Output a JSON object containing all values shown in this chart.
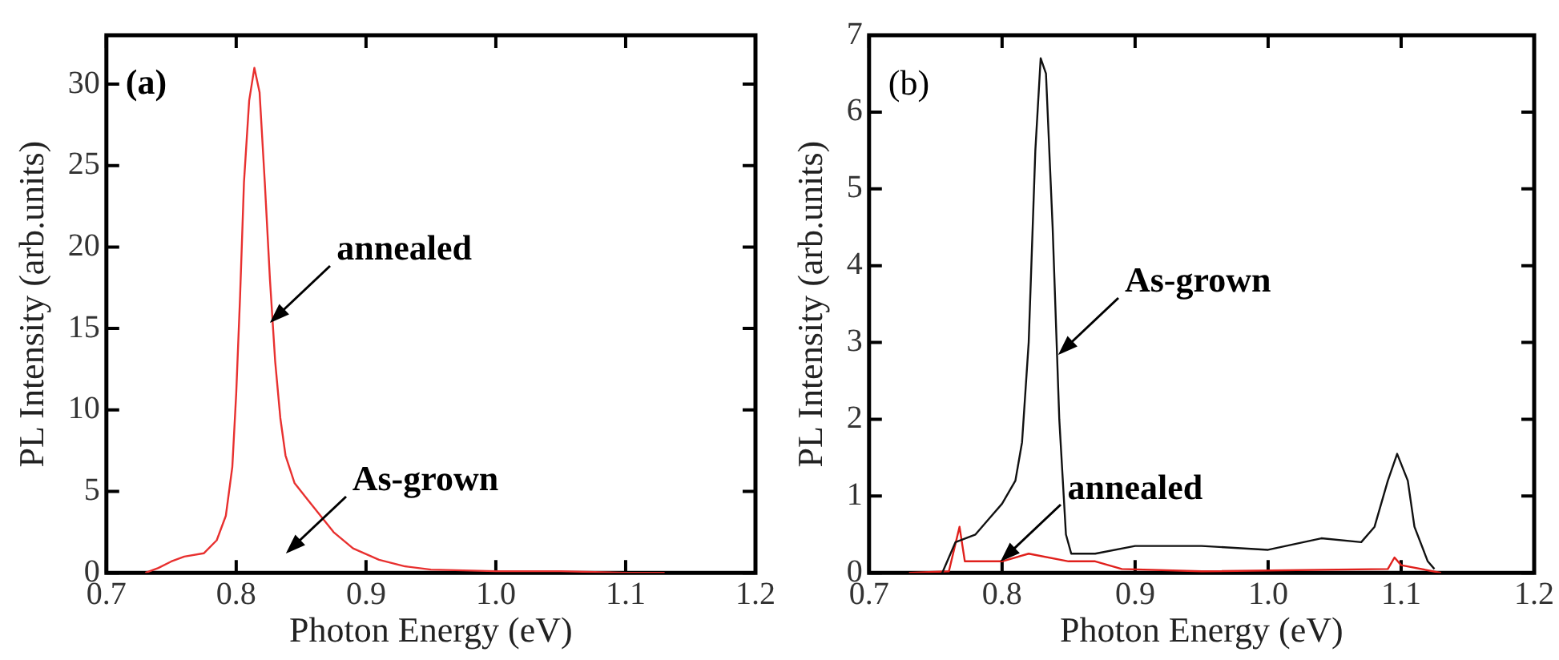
{
  "chart_data": [
    {
      "type": "line",
      "title": "(a)",
      "xlabel": "Photon Energy (eV)",
      "ylabel": "PL Intensity (arb.units)",
      "xlim": [
        0.7,
        1.2
      ],
      "xticks": [
        {
          "value": 0.7,
          "label": "0.7"
        },
        {
          "value": 0.8,
          "label": "0.8"
        },
        {
          "value": 0.9,
          "label": "0.9"
        },
        {
          "value": 1.0,
          "label": "1.0"
        },
        {
          "value": 1.1,
          "label": "1.1"
        },
        {
          "value": 1.2,
          "label": "1.2"
        }
      ],
      "ylim": [
        0,
        33
      ],
      "yticks": [
        0,
        5,
        10,
        15,
        20,
        25,
        30
      ],
      "grid": false,
      "legend": false,
      "marker": "none",
      "series": [
        {
          "color": "#e8302f",
          "x": [
            0.73,
            0.74,
            0.75,
            0.76,
            0.775,
            0.785,
            0.792,
            0.797,
            0.8,
            0.803,
            0.806,
            0.81,
            0.814,
            0.818,
            0.822,
            0.826,
            0.83,
            0.834,
            0.838,
            0.845,
            0.855,
            0.865,
            0.875,
            0.89,
            0.91,
            0.93,
            0.95,
            1.0,
            1.05,
            1.1,
            1.13
          ],
          "values": [
            0,
            0.3,
            0.7,
            1.0,
            1.2,
            2.0,
            3.5,
            6.5,
            11,
            17,
            24,
            29,
            31,
            29.5,
            24,
            18,
            13,
            9.5,
            7.2,
            5.5,
            4.5,
            3.5,
            2.5,
            1.5,
            0.8,
            0.4,
            0.2,
            0.1,
            0.1,
            0,
            0
          ]
        }
      ],
      "annotations": [
        {
          "text": "annealed",
          "x": 0.828,
          "y": 15.5
        },
        "As-grown"
      ]
    },
    {
      "type": "line",
      "title": "(b)",
      "xlabel": "Photon Energy (eV)",
      "ylabel": "PL Intensity (arb.units)",
      "xlim": [
        0.7,
        1.2
      ],
      "xticks": [
        {
          "value": 0.7,
          "label": "0.7"
        },
        {
          "value": 0.8,
          "label": "0.8"
        },
        {
          "value": 0.9,
          "label": "0.9"
        },
        {
          "value": 1.0,
          "label": "1.0"
        },
        {
          "value": 1.1,
          "label": "1.1"
        },
        {
          "value": 1.2,
          "label": "1.2"
        }
      ],
      "ylim": [
        0,
        7
      ],
      "yticks": [
        0,
        1,
        2,
        3,
        4,
        5,
        6,
        7
      ],
      "grid": false,
      "legend": false,
      "marker": "none",
      "series": [
        {
          "color": "#111111",
          "x": [
            0.755,
            0.765,
            0.78,
            0.79,
            0.8,
            0.81,
            0.815,
            0.82,
            0.825,
            0.829,
            0.833,
            0.838,
            0.843,
            0.848,
            0.852,
            0.87,
            0.9,
            0.95,
            1.0,
            1.04,
            1.07,
            1.08,
            1.09,
            1.097,
            1.105,
            1.11,
            1.12,
            1.125
          ],
          "values": [
            0,
            0.4,
            0.5,
            0.7,
            0.9,
            1.2,
            1.7,
            3.0,
            5.5,
            6.7,
            6.5,
            4.5,
            2.0,
            0.5,
            0.25,
            0.25,
            0.35,
            0.35,
            0.3,
            0.45,
            0.4,
            0.6,
            1.2,
            1.55,
            1.2,
            0.6,
            0.15,
            0.05
          ]
        },
        {
          "color": "#e0201c",
          "x": [
            0.73,
            0.76,
            0.768,
            0.772,
            0.8,
            0.82,
            0.85,
            0.87,
            0.89,
            0.95,
            1.09,
            1.095,
            1.1,
            1.13
          ],
          "values": [
            0,
            0.02,
            0.6,
            0.15,
            0.15,
            0.25,
            0.15,
            0.15,
            0.05,
            0.02,
            0.05,
            0.2,
            0.1,
            0
          ]
        }
      ],
      "annotations": [
        {
          "text": "As-grown",
          "x": 0.844,
          "y": 2.87
        },
        {
          "text": "annealed",
          "x": 0.801,
          "y": 0.17
        }
      ]
    }
  ]
}
